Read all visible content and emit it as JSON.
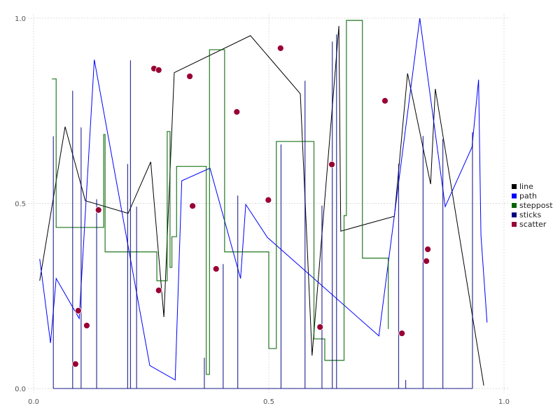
{
  "chart_data": {
    "type": "line",
    "title": "",
    "xlabel": "",
    "ylabel": "",
    "xlim": [
      0,
      1
    ],
    "ylim": [
      0,
      1
    ],
    "grid": true,
    "legend_placement": "right",
    "x_ticks": [
      "0.0",
      "0.5",
      "1.0"
    ],
    "y_ticks": [
      "0.0",
      "0.5",
      "1.0"
    ],
    "x_tick_values": [
      0,
      0.5,
      1
    ],
    "y_tick_values": [
      0,
      0.5,
      1
    ],
    "series": [
      {
        "name": "line",
        "kind": "line",
        "color": "#000000",
        "x": [
          0.013,
          0.067,
          0.11,
          0.201,
          0.249,
          0.277,
          0.299,
          0.461,
          0.567,
          0.592,
          0.649,
          0.653,
          0.767,
          0.795,
          0.844,
          0.854,
          0.957
        ],
        "y": [
          0.291,
          0.707,
          0.507,
          0.473,
          0.612,
          0.193,
          0.853,
          0.953,
          0.796,
          0.089,
          0.979,
          0.425,
          0.465,
          0.851,
          0.552,
          0.809,
          0.008
        ]
      },
      {
        "name": "path",
        "kind": "line",
        "color": "#0000ff",
        "x": [
          0.013,
          0.036,
          0.048,
          0.097,
          0.129,
          0.247,
          0.301,
          0.315,
          0.375,
          0.44,
          0.451,
          0.497,
          0.734,
          0.821,
          0.875,
          0.932,
          0.946,
          0.951,
          0.964
        ],
        "y": [
          0.35,
          0.123,
          0.297,
          0.189,
          0.888,
          0.062,
          0.023,
          0.561,
          0.595,
          0.297,
          0.497,
          0.408,
          0.142,
          1.0,
          0.491,
          0.652,
          0.834,
          0.414,
          0.178
        ]
      },
      {
        "name": "steppost",
        "kind": "steppost",
        "color": "#006400",
        "x": [
          0.039,
          0.048,
          0.149,
          0.152,
          0.262,
          0.284,
          0.29,
          0.294,
          0.304,
          0.367,
          0.374,
          0.406,
          0.5,
          0.516,
          0.596,
          0.619,
          0.66,
          0.665,
          0.699,
          0.754
        ],
        "y": [
          0.836,
          0.435,
          0.686,
          0.369,
          0.291,
          0.694,
          0.327,
          0.41,
          0.6,
          0.038,
          0.915,
          0.369,
          0.108,
          0.667,
          0.134,
          0.076,
          0.467,
          0.994,
          0.352,
          0.161
        ]
      },
      {
        "name": "sticks",
        "kind": "sticks",
        "color": "#000080",
        "x": [
          0.042,
          0.083,
          0.101,
          0.134,
          0.2,
          0.206,
          0.219,
          0.363,
          0.403,
          0.434,
          0.526,
          0.577,
          0.613,
          0.635,
          0.644,
          0.776,
          0.791,
          0.828,
          0.87,
          0.933
        ],
        "y": [
          0.681,
          0.804,
          0.705,
          0.511,
          0.606,
          0.886,
          0.491,
          0.083,
          0.336,
          0.521,
          0.659,
          0.831,
          0.494,
          0.937,
          0.956,
          0.607,
          0.023,
          0.682,
          0.674,
          0.692
        ]
      },
      {
        "name": "scatter",
        "kind": "scatter",
        "color": "#990033",
        "x": [
          0.089,
          0.095,
          0.113,
          0.138,
          0.256,
          0.266,
          0.266,
          0.332,
          0.338,
          0.388,
          0.432,
          0.499,
          0.525,
          0.609,
          0.634,
          0.747,
          0.783,
          0.835,
          0.838
        ],
        "y": [
          0.066,
          0.21,
          0.17,
          0.482,
          0.864,
          0.86,
          0.265,
          0.843,
          0.493,
          0.323,
          0.747,
          0.509,
          0.919,
          0.166,
          0.605,
          0.777,
          0.149,
          0.344,
          0.376
        ]
      }
    ]
  }
}
